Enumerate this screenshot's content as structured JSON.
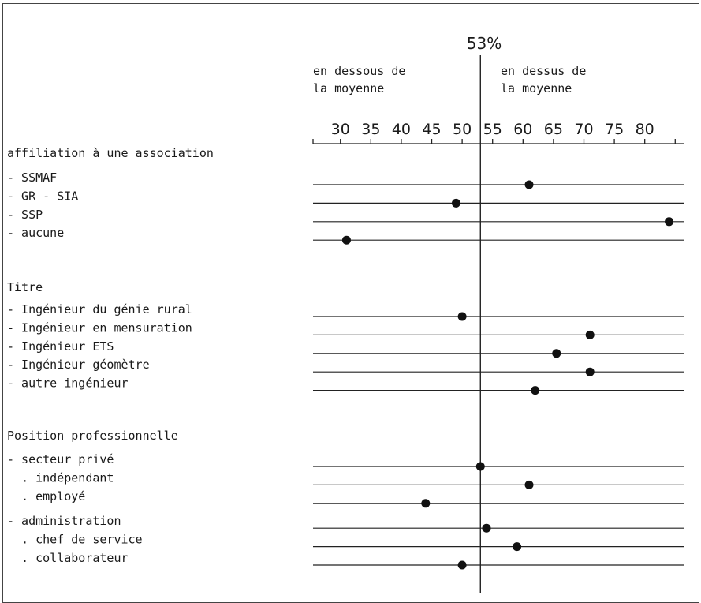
{
  "chart_data": {
    "type": "scatter",
    "reference": {
      "value": 53,
      "label": "53%"
    },
    "side_labels": {
      "below": [
        "en dessous de",
        "la moyenne"
      ],
      "above": [
        "en dessus de",
        "la moyenne"
      ]
    },
    "x_ticks": [
      30,
      35,
      40,
      45,
      50,
      55,
      60,
      65,
      70,
      75,
      80
    ],
    "x_range": [
      25.5,
      86
    ],
    "grid": false,
    "groups": [
      {
        "title": "affiliation à une association",
        "items": [
          {
            "label": "- SSMAF",
            "value": 61
          },
          {
            "label": "- GR - SIA",
            "value": 49
          },
          {
            "label": "- SSP",
            "value": 84
          },
          {
            "label": "- aucune",
            "value": 31
          }
        ]
      },
      {
        "title": "Titre",
        "items": [
          {
            "label": "- Ingénieur du génie rural",
            "value": 50
          },
          {
            "label": "- Ingénieur en mensuration",
            "value": 71
          },
          {
            "label": "- Ingénieur ETS",
            "value": 65.5
          },
          {
            "label": "- Ingénieur géomètre",
            "value": 71
          },
          {
            "label": "- autre ingénieur",
            "value": 62
          }
        ]
      },
      {
        "title": "Position professionnelle",
        "items": [
          {
            "label": "- secteur privé",
            "value": 53
          },
          {
            "label": "  . indépendant",
            "value": 61
          },
          {
            "label": "  . employé",
            "value": 44
          },
          {
            "label": "- administration",
            "value": 54
          },
          {
            "label": "  . chef de service",
            "value": 59
          },
          {
            "label": "  . collaborateur",
            "value": 50
          }
        ]
      }
    ]
  }
}
